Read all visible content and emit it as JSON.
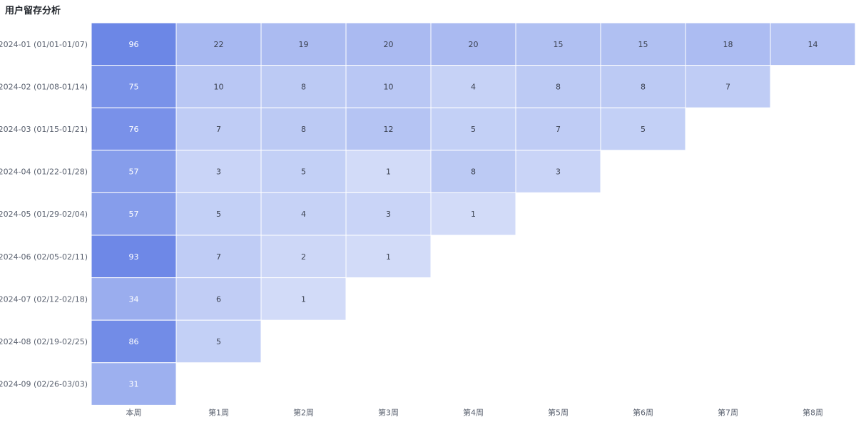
{
  "title": "用户留存分析",
  "chart_data": {
    "type": "heatmap",
    "title": "用户留存分析",
    "rows": [
      "2024-01 (01/01-01/07)",
      "2024-02 (01/08-01/14)",
      "2024-03 (01/15-01/21)",
      "2024-04 (01/22-01/28)",
      "2024-05 (01/29-02/04)",
      "2024-06 (02/05-02/11)",
      "2024-07 (02/12-02/18)",
      "2024-08 (02/19-02/25)",
      "2024-09 (02/26-03/03)"
    ],
    "columns": [
      "本周",
      "第1周",
      "第2周",
      "第3周",
      "第4周",
      "第5周",
      "第6周",
      "第7周",
      "第8周"
    ],
    "values": [
      [
        96,
        22,
        19,
        20,
        20,
        15,
        15,
        18,
        14
      ],
      [
        75,
        10,
        8,
        10,
        4,
        8,
        8,
        7
      ],
      [
        76,
        7,
        8,
        12,
        5,
        7,
        5
      ],
      [
        57,
        3,
        5,
        1,
        8,
        3
      ],
      [
        57,
        5,
        4,
        3,
        1
      ],
      [
        93,
        7,
        2,
        1
      ],
      [
        34,
        6,
        1
      ],
      [
        86,
        5
      ],
      [
        31
      ]
    ],
    "color_scale": {
      "low": "#dde5fa",
      "high": "#6a85e6"
    },
    "grid": false,
    "legend": "none"
  }
}
